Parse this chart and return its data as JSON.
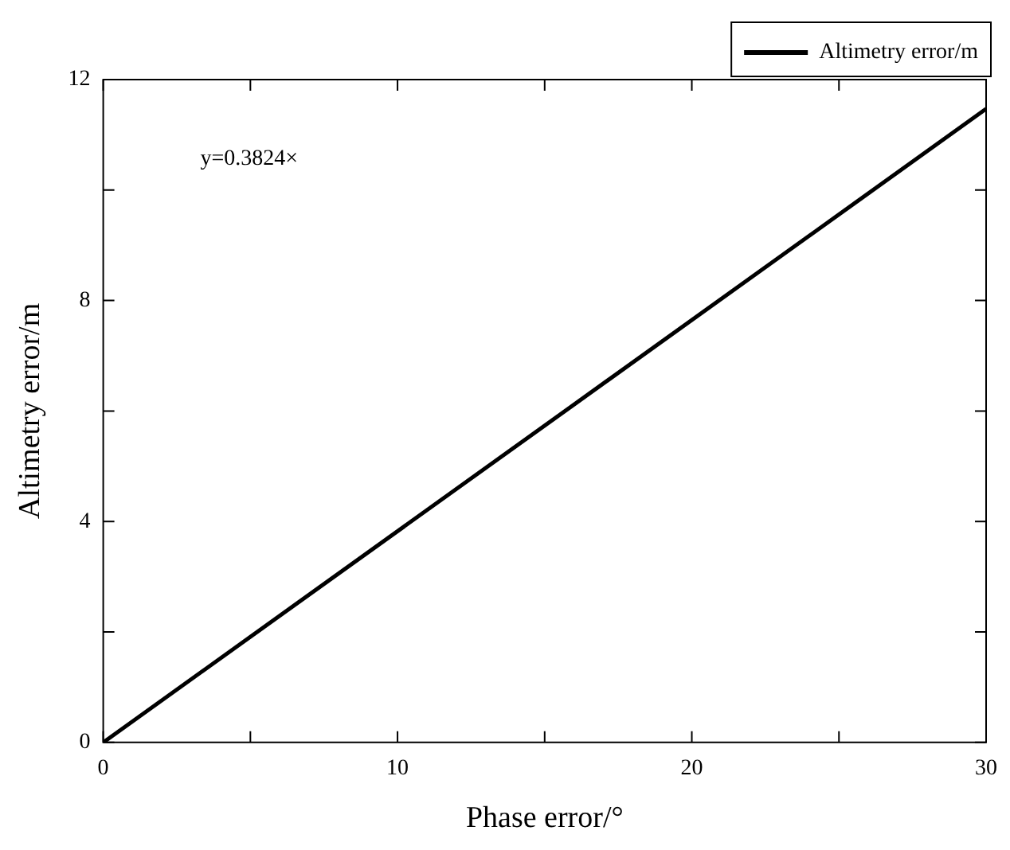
{
  "chart_data": {
    "type": "line",
    "xlabel": "Phase error/°",
    "ylabel": "Altimetry error/m",
    "xlim": [
      0,
      30
    ],
    "xticks": [
      0,
      {
        "value": 5,
        "label": null
      },
      10,
      {
        "value": 15,
        "label": null
      },
      20,
      {
        "value": 25,
        "label": null
      },
      30
    ],
    "ylim": [
      0,
      12
    ],
    "yticks": [
      0,
      {
        "value": 2,
        "label": null
      },
      4,
      {
        "value": 6,
        "label": null
      },
      8,
      {
        "value": 10,
        "label": null
      },
      12
    ],
    "series": [
      {
        "name": "Altimetry error/m",
        "color": "#000000",
        "x": [
          0,
          30
        ],
        "values": [
          0,
          11.47
        ]
      }
    ],
    "annotations": [
      "y=0.3824×"
    ],
    "legend": "top right",
    "grid": false,
    "marker": "none",
    "line_style": "solid"
  }
}
